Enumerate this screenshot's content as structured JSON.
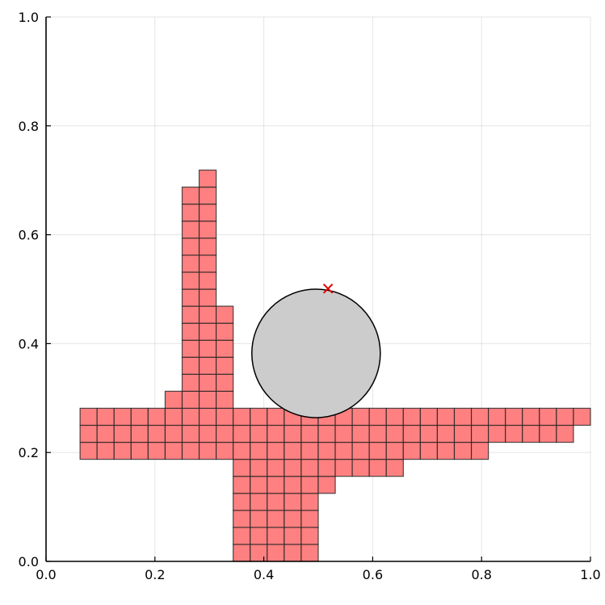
{
  "chart_data": {
    "type": "scatter",
    "xlim": [
      0,
      1
    ],
    "ylim": [
      0,
      1
    ],
    "grid": true,
    "x_ticks": [
      "0.0",
      "0.2",
      "0.4",
      "0.6",
      "0.8",
      "1.0"
    ],
    "y_ticks": [
      "0.0",
      "0.2",
      "0.4",
      "0.6",
      "0.8",
      "1.0"
    ],
    "cell_size": 0.03125,
    "cells": {
      "color": "#ff8080",
      "columns": [
        {
          "x": 0.0625,
          "y_ranges": [
            [
              0.1875,
              0.28125
            ]
          ]
        },
        {
          "x": 0.09375,
          "y_ranges": [
            [
              0.1875,
              0.28125
            ]
          ]
        },
        {
          "x": 0.125,
          "y_ranges": [
            [
              0.1875,
              0.28125
            ]
          ]
        },
        {
          "x": 0.15625,
          "y_ranges": [
            [
              0.1875,
              0.28125
            ]
          ]
        },
        {
          "x": 0.1875,
          "y_ranges": [
            [
              0.1875,
              0.28125
            ]
          ]
        },
        {
          "x": 0.21875,
          "y_ranges": [
            [
              0.1875,
              0.3125
            ]
          ]
        },
        {
          "x": 0.25,
          "y_ranges": [
            [
              0.1875,
              0.6875
            ]
          ]
        },
        {
          "x": 0.28125,
          "y_ranges": [
            [
              0.1875,
              0.71875
            ]
          ]
        },
        {
          "x": 0.3125,
          "y_ranges": [
            [
              0.1875,
              0.46875
            ]
          ]
        },
        {
          "x": 0.34375,
          "y_ranges": [
            [
              0.0,
              0.28125
            ]
          ]
        },
        {
          "x": 0.375,
          "y_ranges": [
            [
              0.0,
              0.28125
            ]
          ]
        },
        {
          "x": 0.40625,
          "y_ranges": [
            [
              0.0,
              0.28125
            ]
          ]
        },
        {
          "x": 0.4375,
          "y_ranges": [
            [
              0.0,
              0.28125
            ]
          ]
        },
        {
          "x": 0.46875,
          "y_ranges": [
            [
              0.0,
              0.28125
            ]
          ]
        },
        {
          "x": 0.5,
          "y_ranges": [
            [
              0.125,
              0.28125
            ]
          ]
        },
        {
          "x": 0.53125,
          "y_ranges": [
            [
              0.15625,
              0.28125
            ]
          ]
        },
        {
          "x": 0.5625,
          "y_ranges": [
            [
              0.15625,
              0.28125
            ]
          ]
        },
        {
          "x": 0.59375,
          "y_ranges": [
            [
              0.15625,
              0.28125
            ]
          ]
        },
        {
          "x": 0.625,
          "y_ranges": [
            [
              0.15625,
              0.28125
            ]
          ]
        },
        {
          "x": 0.65625,
          "y_ranges": [
            [
              0.1875,
              0.28125
            ]
          ]
        },
        {
          "x": 0.6875,
          "y_ranges": [
            [
              0.1875,
              0.28125
            ]
          ]
        },
        {
          "x": 0.71875,
          "y_ranges": [
            [
              0.1875,
              0.28125
            ]
          ]
        },
        {
          "x": 0.75,
          "y_ranges": [
            [
              0.1875,
              0.28125
            ]
          ]
        },
        {
          "x": 0.78125,
          "y_ranges": [
            [
              0.1875,
              0.28125
            ]
          ]
        },
        {
          "x": 0.8125,
          "y_ranges": [
            [
              0.21875,
              0.28125
            ]
          ]
        },
        {
          "x": 0.84375,
          "y_ranges": [
            [
              0.21875,
              0.28125
            ]
          ]
        },
        {
          "x": 0.875,
          "y_ranges": [
            [
              0.21875,
              0.28125
            ]
          ]
        },
        {
          "x": 0.90625,
          "y_ranges": [
            [
              0.21875,
              0.28125
            ]
          ]
        },
        {
          "x": 0.9375,
          "y_ranges": [
            [
              0.21875,
              0.28125
            ]
          ]
        },
        {
          "x": 0.96875,
          "y_ranges": [
            [
              0.25,
              0.28125
            ]
          ]
        }
      ]
    },
    "circle": {
      "cx": 0.496,
      "cy": 0.382,
      "r": 0.118,
      "fill": "#cccccc",
      "stroke": "#000000"
    },
    "marker": {
      "x": 0.518,
      "y": 0.501,
      "symbol": "x",
      "color": "#e00000"
    }
  }
}
